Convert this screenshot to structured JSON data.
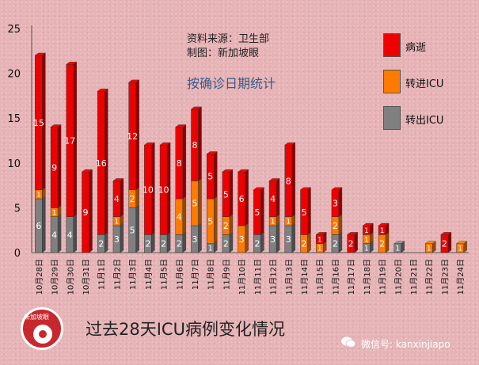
{
  "source_line1": "资料来源：卫生部",
  "source_line2": "制图：新加坡眼",
  "chart_subtitle": "按确诊日期统计",
  "bottom_title": "过去28天ICU病例变化情况",
  "logo_text": "新加坡眼",
  "watermark": "微信号: kanxinjiapo",
  "colors": {
    "deaths": "#ee0000",
    "into_icu": "#ff7a00",
    "out_icu": "#808080"
  },
  "chart_data": {
    "type": "bar",
    "stacked": true,
    "ylim": [
      0,
      25
    ],
    "yticks": [
      0,
      5,
      10,
      15,
      20,
      25
    ],
    "legend_position": "top-right",
    "categories": [
      "10月28日",
      "10月29日",
      "10月30日",
      "10月31日",
      "11月1日",
      "11月2日",
      "11月3日",
      "11月4日",
      "11月5日",
      "11月6日",
      "11月7日",
      "11月8日",
      "11月9日",
      "11月10日",
      "11月11日",
      "11月12日",
      "11月13日",
      "11月14日",
      "11月15日",
      "11月16日",
      "11月17日",
      "11月18日",
      "11月19日",
      "11月20日",
      "11月21日",
      "11月22日",
      "11月23日",
      "11月24日"
    ],
    "series": [
      {
        "name": "转出ICU",
        "key": "out_icu",
        "values": [
          6,
          4,
          4,
          0,
          2,
          3,
          5,
          2,
          2,
          2,
          3,
          1,
          2,
          0,
          2,
          3,
          3,
          0,
          0,
          2,
          0,
          1,
          0,
          1,
          0,
          0,
          0,
          0
        ]
      },
      {
        "name": "转进ICU",
        "key": "into_icu",
        "values": [
          1,
          1,
          0,
          0,
          0,
          1,
          2,
          0,
          0,
          4,
          5,
          5,
          2,
          3,
          0,
          1,
          1,
          2,
          1,
          2,
          0,
          1,
          2,
          0,
          0,
          1,
          0,
          1
        ]
      },
      {
        "name": "病逝",
        "key": "deaths",
        "values": [
          15,
          9,
          17,
          9,
          16,
          4,
          12,
          10,
          10,
          8,
          8,
          5,
          5,
          6,
          5,
          4,
          8,
          5,
          1,
          3,
          2,
          1,
          1,
          0,
          0,
          0,
          2,
          0
        ]
      }
    ]
  }
}
